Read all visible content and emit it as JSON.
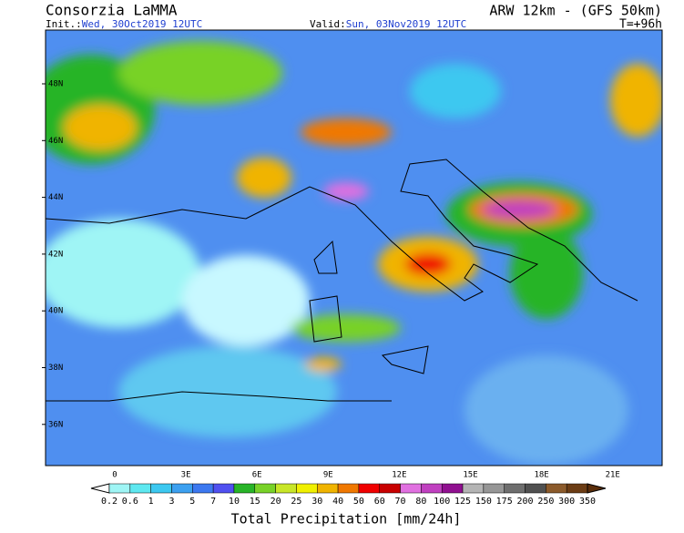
{
  "header": {
    "title": "Consorzia LaMMA",
    "model": "ARW 12km - (GFS 50km)",
    "init_label": "Init.:",
    "init": "Wed, 30Oct2019 12UTC",
    "valid_label": "Valid:",
    "valid": "Sun, 03Nov2019 12UTC",
    "lead": "T=+96h"
  },
  "map": {
    "lat_labels": [
      "48N",
      "46N",
      "44N",
      "42N",
      "40N",
      "38N",
      "36N"
    ],
    "lon_labels": [
      "0",
      "3E",
      "6E",
      "9E",
      "12E",
      "15E",
      "18E",
      "21E"
    ]
  },
  "colorbar": {
    "labels": [
      "0.2",
      "0.6",
      "1",
      "3",
      "5",
      "7",
      "10",
      "15",
      "20",
      "25",
      "30",
      "40",
      "50",
      "60",
      "70",
      "80",
      "100",
      "125",
      "150",
      "175",
      "200",
      "250",
      "300",
      "350"
    ],
    "colors": [
      "#9ff5f5",
      "#5ee8f0",
      "#3cc8f0",
      "#3ca0f0",
      "#3c78f0",
      "#5050f0",
      "#28b428",
      "#78d228",
      "#c8e628",
      "#f0f000",
      "#f0b400",
      "#f07800",
      "#f00000",
      "#c80000",
      "#e070e0",
      "#c040c0",
      "#901090",
      "#b4b4b4",
      "#969696",
      "#6e6e6e",
      "#505050",
      "#8b5a2b",
      "#6b3c14"
    ],
    "under_color": "#ffffff",
    "over_color": "#5a2d0a",
    "title": "Total Precipitation [mm/24h]"
  }
}
